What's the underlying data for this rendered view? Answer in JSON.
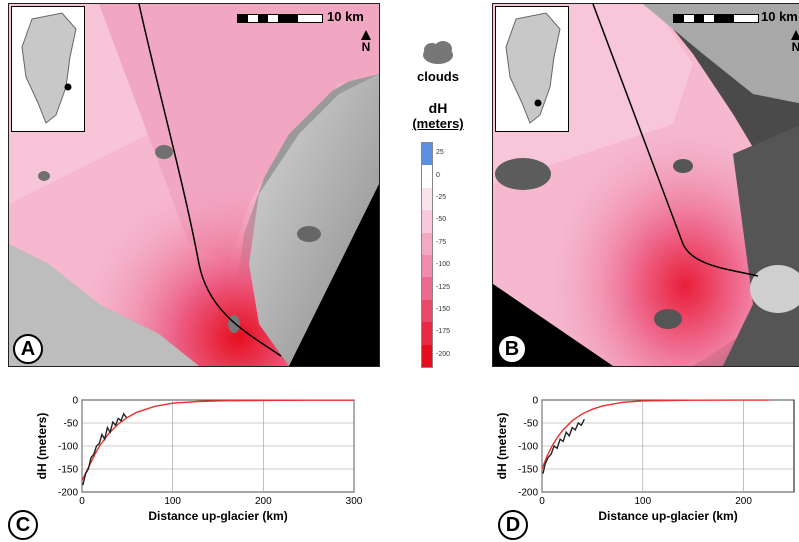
{
  "panels": {
    "a": {
      "letter": "A",
      "scale_label": "10 km",
      "north_label": "N"
    },
    "b": {
      "letter": "B",
      "scale_label": "10 km",
      "north_label": "N"
    },
    "c": {
      "letter": "C"
    },
    "d": {
      "letter": "D"
    }
  },
  "legend": {
    "clouds_label": "clouds",
    "title_line1": "dH",
    "title_line2": "(meters)",
    "ticks": [
      "25",
      "0",
      "-25",
      "-50",
      "-75",
      "-100",
      "-125",
      "-150",
      "-175",
      "-200"
    ],
    "colors": [
      "#5b8fe0",
      "#ffffff",
      "#fbe3ee",
      "#f8c8dc",
      "#f3a9c4",
      "#ef8bac",
      "#ec6a90",
      "#ea4868",
      "#e92a45",
      "#e60e1e"
    ]
  },
  "chart_data": [
    {
      "type": "line",
      "panel": "C",
      "xlabel": "Distance up-glacier (km)",
      "ylabel": "dH (meters)",
      "xlim": [
        0,
        300
      ],
      "ylim": [
        -200,
        0
      ],
      "xticks": [
        "0",
        "100",
        "200",
        "300"
      ],
      "yticks": [
        "0",
        "-50",
        "-100",
        "-150",
        "-200"
      ],
      "series": [
        {
          "color": "#e8302c",
          "x": [
            0,
            5,
            10,
            15,
            20,
            30,
            40,
            50,
            60,
            80,
            100,
            130,
            160,
            200,
            250,
            300
          ],
          "y": [
            -175,
            -155,
            -135,
            -115,
            -98,
            -72,
            -52,
            -38,
            -27,
            -14,
            -7,
            -3,
            -1.5,
            -1,
            -0.5,
            -0.3
          ]
        },
        {
          "color": "#222222",
          "x": [
            1,
            4,
            7,
            10,
            13,
            16,
            19,
            22,
            25,
            28,
            31,
            34,
            37,
            40,
            43,
            46,
            49
          ],
          "y": [
            -185,
            -160,
            -150,
            -125,
            -118,
            -100,
            -95,
            -75,
            -85,
            -60,
            -70,
            -48,
            -55,
            -40,
            -45,
            -30,
            -38
          ]
        }
      ]
    },
    {
      "type": "line",
      "panel": "D",
      "xlabel": "Distance up-glacier (km)",
      "ylabel": "dH (meters)",
      "xlim": [
        0,
        250
      ],
      "ylim": [
        -200,
        0
      ],
      "xticks": [
        "0",
        "100",
        "200"
      ],
      "yticks": [
        "0",
        "-50",
        "-100",
        "-150",
        "-200"
      ],
      "series": [
        {
          "color": "#e8302c",
          "x": [
            0,
            5,
            10,
            15,
            20,
            30,
            40,
            50,
            60,
            80,
            100,
            150,
            200,
            225
          ],
          "y": [
            -150,
            -122,
            -100,
            -82,
            -67,
            -45,
            -30,
            -20,
            -13,
            -5,
            -2,
            -0.5,
            -0.2,
            -0.1
          ]
        },
        {
          "color": "#222222",
          "x": [
            1,
            3,
            6,
            9,
            12,
            15,
            18,
            21,
            24,
            27,
            30,
            33,
            36,
            39,
            42
          ],
          "y": [
            -160,
            -140,
            -125,
            -118,
            -100,
            -105,
            -85,
            -90,
            -70,
            -78,
            -60,
            -65,
            -50,
            -55,
            -42
          ]
        }
      ]
    }
  ]
}
